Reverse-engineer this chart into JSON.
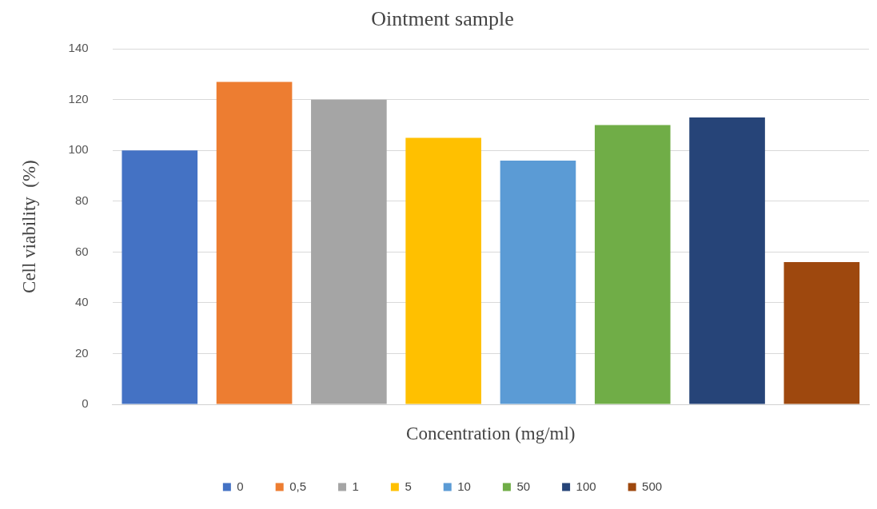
{
  "chart_data": {
    "type": "bar",
    "title": "Ointment sample",
    "xlabel": "Concentration (mg/ml)",
    "ylabel": "Cell viability  (%)",
    "categories": [
      null,
      null,
      null,
      null,
      null,
      null,
      null,
      null
    ],
    "series": [
      {
        "name": "0",
        "color": "#4472c4",
        "values": [
          100,
          null,
          null,
          null,
          null,
          null,
          null,
          null
        ]
      },
      {
        "name": "0,5",
        "color": "#ed7d31",
        "values": [
          null,
          127,
          null,
          null,
          null,
          null,
          null,
          null
        ]
      },
      {
        "name": "1",
        "color": "#a5a5a5",
        "values": [
          null,
          null,
          120,
          null,
          null,
          null,
          null,
          null
        ]
      },
      {
        "name": "5",
        "color": "#ffc000",
        "values": [
          null,
          null,
          null,
          105,
          null,
          null,
          null,
          null
        ]
      },
      {
        "name": "10",
        "color": "#5b9bd5",
        "values": [
          null,
          null,
          null,
          null,
          96,
          null,
          null,
          null
        ]
      },
      {
        "name": "50",
        "color": "#70ad47",
        "values": [
          null,
          null,
          null,
          null,
          null,
          110,
          null,
          null
        ]
      },
      {
        "name": "100",
        "color": "#264478",
        "values": [
          null,
          null,
          null,
          null,
          null,
          null,
          113,
          null
        ]
      },
      {
        "name": "500",
        "color": "#9e480e",
        "values": [
          null,
          null,
          null,
          null,
          null,
          null,
          null,
          56
        ]
      }
    ],
    "ylim": [
      0,
      140
    ],
    "yticks": [
      0,
      20,
      40,
      60,
      80,
      100,
      120,
      140
    ],
    "grid": "y",
    "legend": "bottom"
  }
}
